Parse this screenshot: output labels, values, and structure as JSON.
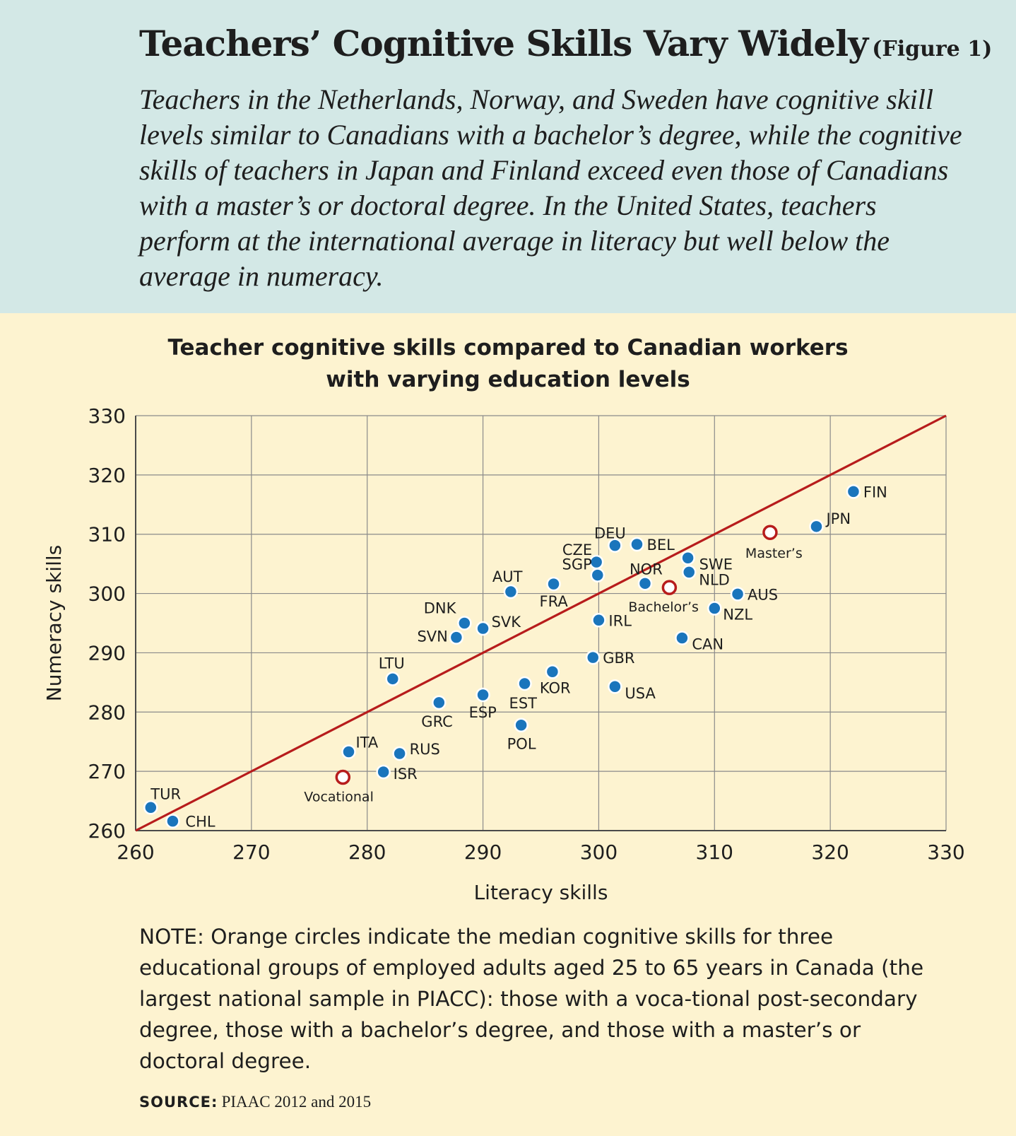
{
  "header": {
    "title": "Teachers’ Cognitive Skills Vary Widely",
    "figure_label": "(Figure 1)",
    "subtitle": "Teachers in the Netherlands, Norway, and Sweden have cognitive skill levels similar to Canadians with a bachelor’s degree, while the cognitive skills of teachers in Japan and Finland exceed even those of Canadians with a master’s or doctoral degree. In the United States, teachers perform at the international average in literacy but well below the average in numeracy."
  },
  "note": "NOTE: Orange circles indicate the median cognitive skills for three educational groups of employed adults aged 25 to 65 years in Canada (the largest national sample in PIACC): those with a voca-tional post-secondary degree, those with a bachelor’s degree, and those with a master’s or doctoral degree.",
  "source": {
    "label": "SOURCE:",
    "text": "PIAAC 2012 and 2015"
  },
  "colors": {
    "header_bg": "#d3e8e6",
    "chart_bg": "#fdf3d0",
    "point": "#1a75bc",
    "reference": "#b71c1c",
    "grid": "#8a8a8a"
  },
  "chart_data": {
    "type": "scatter",
    "title": "Teacher cognitive skills compared to Canadian workers with varying education levels",
    "title_lines": [
      "Teacher cognitive skills compared to Canadian workers",
      "with varying education levels"
    ],
    "xlabel": "Literacy skills",
    "ylabel": "Numeracy skills",
    "xlim": [
      260,
      330
    ],
    "ylim": [
      260,
      330
    ],
    "xticks": [
      260,
      270,
      280,
      290,
      300,
      310,
      320,
      330
    ],
    "yticks": [
      260,
      270,
      280,
      290,
      300,
      310,
      320,
      330
    ],
    "grid": true,
    "diagonal_line": {
      "from": [
        260,
        260
      ],
      "to": [
        330,
        330
      ]
    },
    "points": [
      {
        "label": "FIN",
        "x": 322.0,
        "y": 317.2
      },
      {
        "label": "JPN",
        "x": 318.8,
        "y": 311.3
      },
      {
        "label": "DEU",
        "x": 301.4,
        "y": 308.1
      },
      {
        "label": "BEL",
        "x": 303.3,
        "y": 308.3
      },
      {
        "label": "CZE",
        "x": 299.8,
        "y": 305.3
      },
      {
        "label": "SGP",
        "x": 299.9,
        "y": 303.1
      },
      {
        "label": "SWE",
        "x": 307.7,
        "y": 306.0
      },
      {
        "label": "NLD",
        "x": 307.8,
        "y": 303.6
      },
      {
        "label": "NOR",
        "x": 304.0,
        "y": 301.7
      },
      {
        "label": "AUT",
        "x": 292.4,
        "y": 300.3
      },
      {
        "label": "FRA",
        "x": 296.1,
        "y": 301.6
      },
      {
        "label": "AUS",
        "x": 312.0,
        "y": 299.9
      },
      {
        "label": "NZL",
        "x": 310.0,
        "y": 297.5
      },
      {
        "label": "IRL",
        "x": 300.0,
        "y": 295.5
      },
      {
        "label": "DNK",
        "x": 288.4,
        "y": 295.0
      },
      {
        "label": "SVK",
        "x": 290.0,
        "y": 294.1
      },
      {
        "label": "SVN",
        "x": 287.7,
        "y": 292.6
      },
      {
        "label": "CAN",
        "x": 307.2,
        "y": 292.5
      },
      {
        "label": "GBR",
        "x": 299.5,
        "y": 289.2
      },
      {
        "label": "LTU",
        "x": 282.2,
        "y": 285.6
      },
      {
        "label": "KOR",
        "x": 296.0,
        "y": 286.8
      },
      {
        "label": "EST",
        "x": 293.6,
        "y": 284.8
      },
      {
        "label": "USA",
        "x": 301.4,
        "y": 284.3
      },
      {
        "label": "ESP",
        "x": 290.0,
        "y": 282.9
      },
      {
        "label": "GRC",
        "x": 286.2,
        "y": 281.6
      },
      {
        "label": "POL",
        "x": 293.3,
        "y": 277.8
      },
      {
        "label": "ITA",
        "x": 278.4,
        "y": 273.3
      },
      {
        "label": "RUS",
        "x": 282.8,
        "y": 273.0
      },
      {
        "label": "ISR",
        "x": 281.4,
        "y": 269.9
      },
      {
        "label": "TUR",
        "x": 261.3,
        "y": 263.9
      },
      {
        "label": "CHL",
        "x": 263.2,
        "y": 261.6
      }
    ],
    "reference_points": [
      {
        "label": "Master’s",
        "x": 314.8,
        "y": 310.3
      },
      {
        "label": "Bachelor’s",
        "x": 306.1,
        "y": 301.0
      },
      {
        "label": "Vocational",
        "x": 277.9,
        "y": 269.0
      }
    ]
  }
}
